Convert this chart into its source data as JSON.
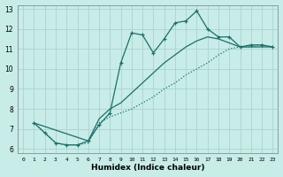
{
  "xlabel": "Humidex (Indice chaleur)",
  "bg_color": "#c8ece8",
  "grid_color": "#aad4d0",
  "line_color": "#1a7068",
  "xlim": [
    -0.5,
    23.5
  ],
  "ylim": [
    5.8,
    13.2
  ],
  "xticks": [
    0,
    1,
    2,
    3,
    4,
    5,
    6,
    7,
    8,
    9,
    10,
    11,
    12,
    13,
    14,
    15,
    16,
    17,
    18,
    19,
    20,
    21,
    22,
    23
  ],
  "yticks": [
    6,
    7,
    8,
    9,
    10,
    11,
    12,
    13
  ],
  "series_jagged_x": [
    1,
    2,
    3,
    4,
    5,
    6,
    7,
    8,
    9,
    10,
    11,
    12,
    13,
    14,
    15,
    16,
    17,
    18,
    19,
    20,
    21,
    22,
    23
  ],
  "series_jagged_y": [
    7.3,
    6.8,
    6.3,
    6.2,
    6.2,
    6.4,
    7.2,
    7.8,
    10.3,
    11.8,
    11.7,
    10.8,
    11.5,
    12.3,
    12.4,
    12.9,
    12.0,
    11.6,
    11.6,
    11.1,
    11.2,
    11.2,
    11.1
  ],
  "series_diag1_x": [
    1,
    2,
    3,
    4,
    5,
    6,
    7,
    8,
    9,
    10,
    11,
    12,
    13,
    14,
    15,
    16,
    17,
    18,
    19,
    20,
    21,
    22,
    23
  ],
  "series_diag1_y": [
    7.3,
    6.8,
    6.3,
    6.2,
    6.2,
    6.3,
    7.3,
    7.6,
    7.8,
    8.0,
    8.3,
    8.6,
    9.0,
    9.3,
    9.7,
    10.0,
    10.3,
    10.7,
    11.0,
    11.1,
    11.1,
    11.2,
    11.1
  ],
  "series_diag2_x": [
    1,
    6,
    7,
    8,
    9,
    10,
    11,
    12,
    13,
    14,
    15,
    16,
    17,
    18,
    19,
    20,
    21,
    22,
    23
  ],
  "series_diag2_y": [
    7.3,
    6.4,
    7.5,
    8.0,
    8.3,
    8.8,
    9.3,
    9.8,
    10.3,
    10.7,
    11.1,
    11.4,
    11.6,
    11.5,
    11.3,
    11.1,
    11.1,
    11.1,
    11.1
  ]
}
